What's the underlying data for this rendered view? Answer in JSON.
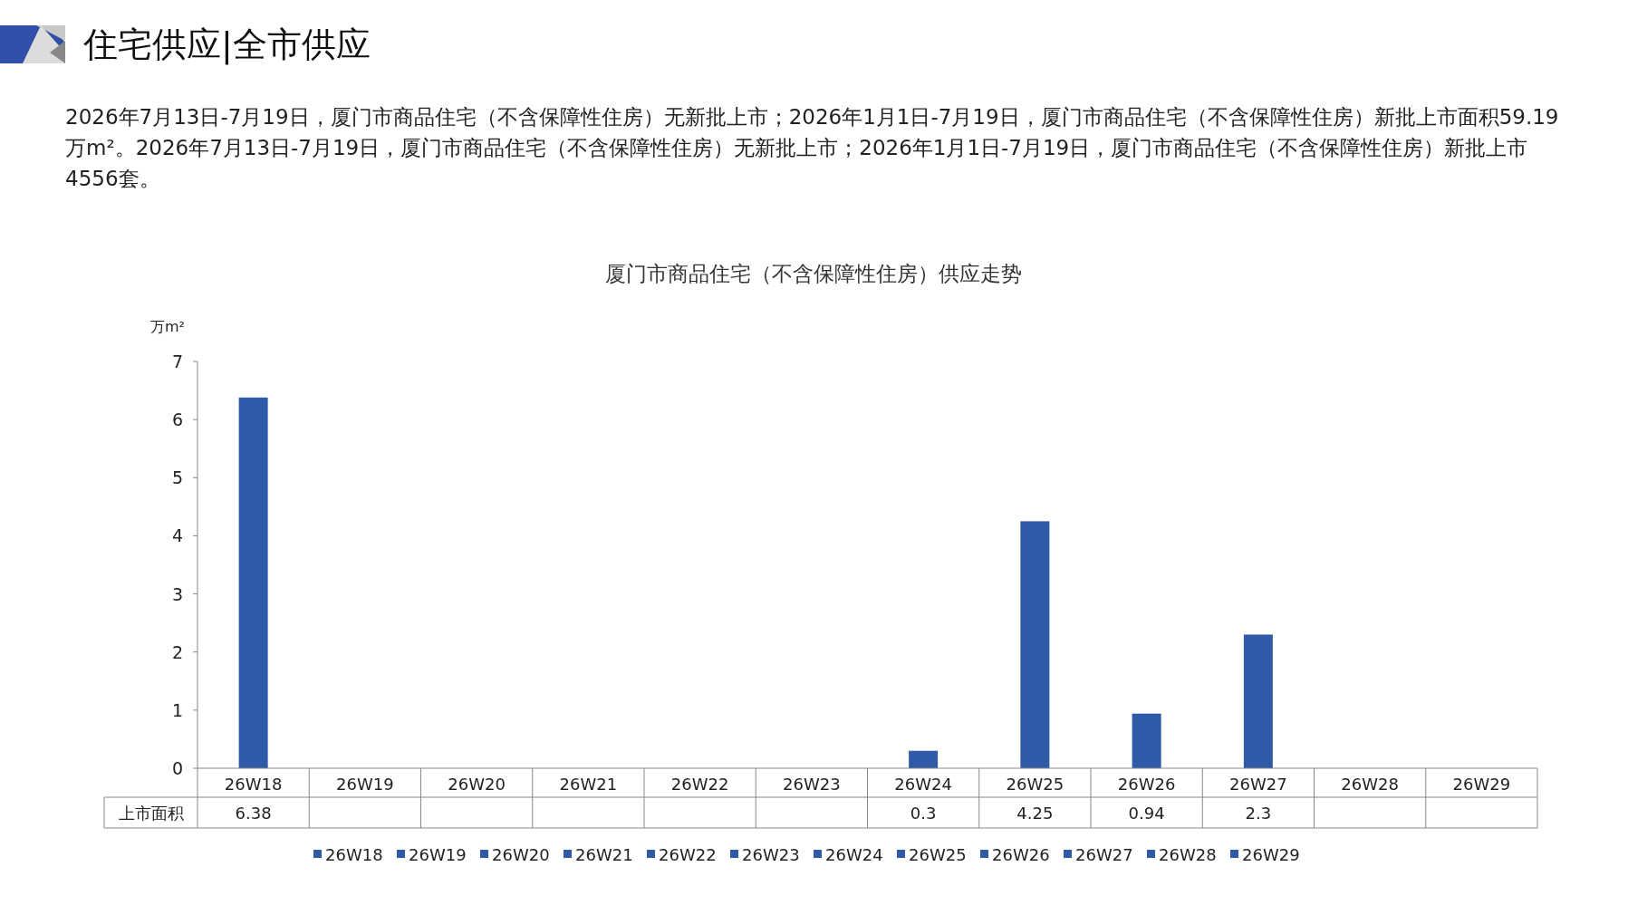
{
  "chart_data": {
    "type": "bar",
    "title": "住宅供应|全市供应",
    "subtitle": "2026年7月13日-7月19日，厦门市商品住宅（不含保障性住房）无新批上市；2026年1月1日-7月19日，厦门市商品住宅（不含保障性住房）新批上市面积59.19万m²。2026年7月13日-7月19日，厦门市商品住宅（不含保障性住房）无新批上市；2026年1月1日-7月19日，厦门市商品住宅（不含保障性住房）新批上市4556套。",
    "annotations": [
      "厦门市商品住宅（不含保障性住房）供应走势"
    ],
    "ylabel": "万m²",
    "categories": [
      "26W18",
      "26W19",
      "26W20",
      "26W21",
      "26W22",
      "26W23",
      "26W24",
      "26W25",
      "26W26",
      "26W27",
      "26W28",
      "26W29"
    ],
    "series": [
      {
        "name": "上市面积",
        "color": "#2f5aa8",
        "values": [
          6.38,
          null,
          null,
          null,
          null,
          null,
          0.3,
          4.25,
          0.94,
          2.3,
          null,
          null
        ]
      }
    ],
    "ylim": [
      0,
      7
    ],
    "yticks": [
      0,
      1,
      2,
      3,
      4,
      5,
      6,
      7
    ],
    "data_labels": true,
    "legend": "bottom",
    "grid": false
  }
}
